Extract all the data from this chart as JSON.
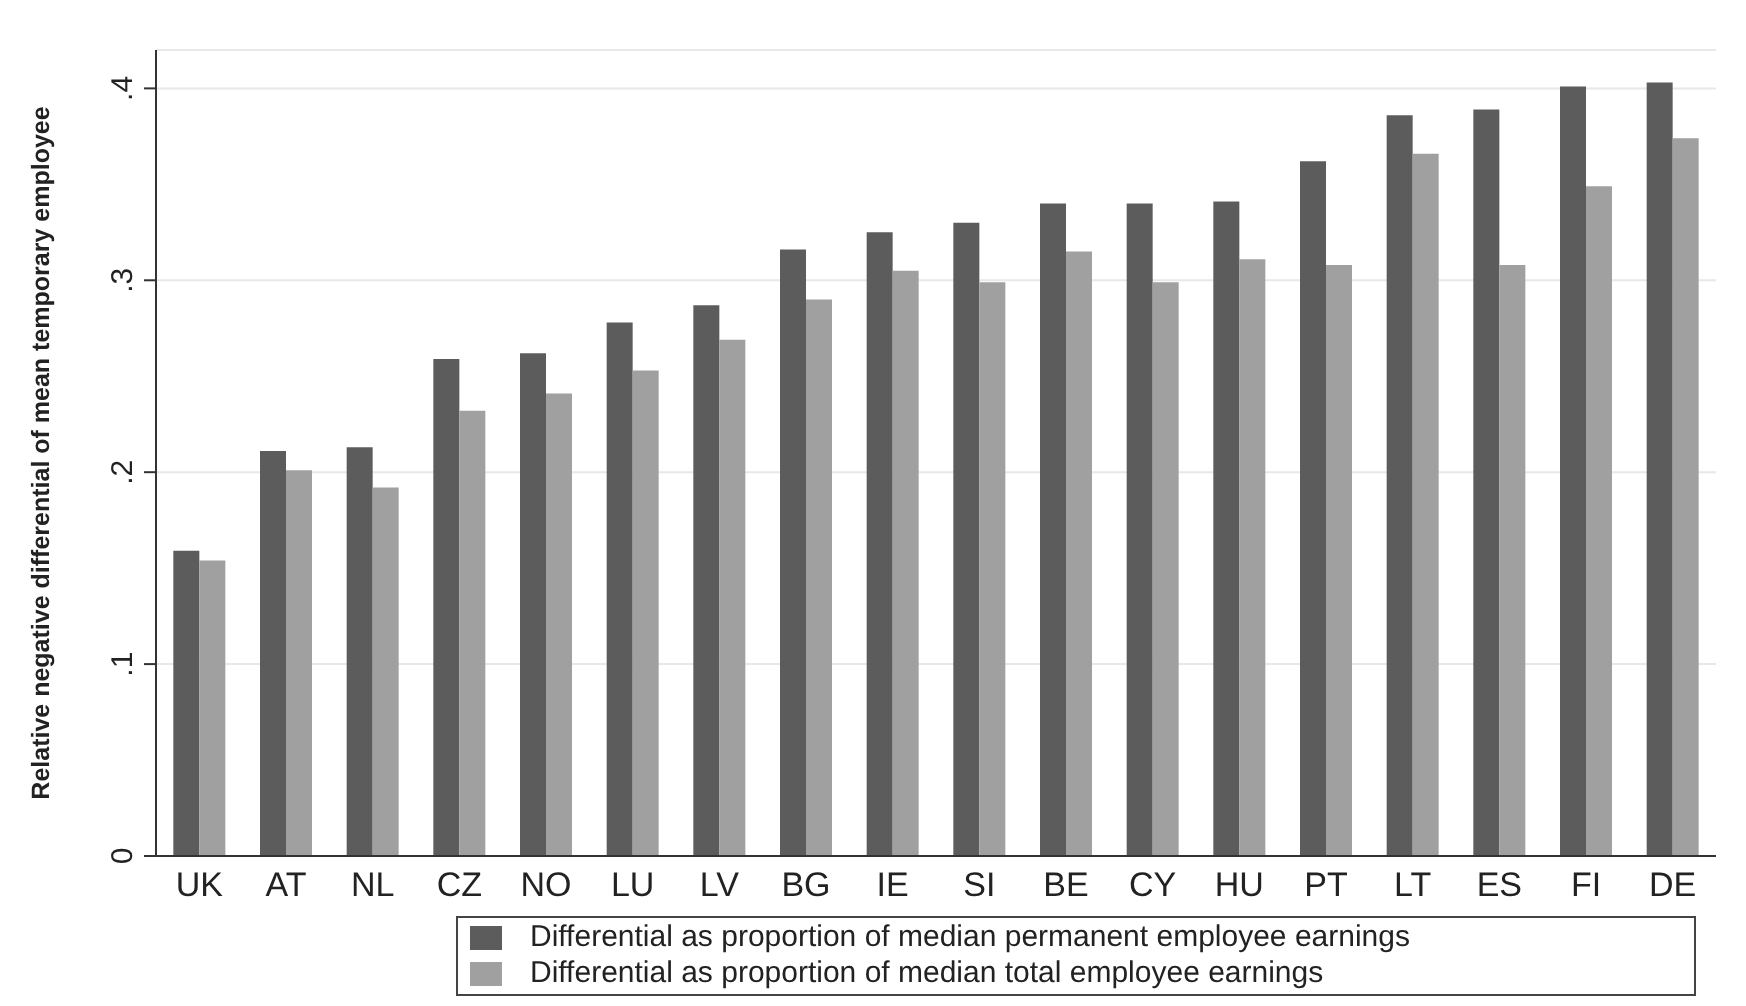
{
  "chart_data": {
    "type": "bar",
    "ylabel": "Relative negative differential of mean temporary employee",
    "categories": [
      "UK",
      "AT",
      "NL",
      "CZ",
      "NO",
      "LU",
      "LV",
      "BG",
      "IE",
      "SI",
      "BE",
      "CY",
      "HU",
      "PT",
      "LT",
      "ES",
      "FI",
      "DE"
    ],
    "series": [
      {
        "name": "Differential as proportion of median permanent employee earnings",
        "color": "#5c5c5c",
        "values": [
          0.159,
          0.211,
          0.213,
          0.259,
          0.262,
          0.278,
          0.287,
          0.316,
          0.325,
          0.33,
          0.34,
          0.34,
          0.341,
          0.362,
          0.386,
          0.389,
          0.401,
          0.403
        ]
      },
      {
        "name": "Differential as proportion of median total employee earnings",
        "color": "#a0a0a0",
        "values": [
          0.154,
          0.201,
          0.192,
          0.232,
          0.241,
          0.253,
          0.269,
          0.29,
          0.305,
          0.299,
          0.315,
          0.299,
          0.311,
          0.308,
          0.366,
          0.308,
          0.349,
          0.374
        ]
      }
    ],
    "ylim": [
      0,
      0.42
    ],
    "yticks": [
      {
        "value": 0,
        "label": "0"
      },
      {
        "value": 0.1,
        "label": ".1"
      },
      {
        "value": 0.2,
        "label": ".2"
      },
      {
        "value": 0.3,
        "label": ".3"
      },
      {
        "value": 0.4,
        "label": ".4"
      }
    ],
    "grid": "y",
    "legend": "bottom"
  }
}
